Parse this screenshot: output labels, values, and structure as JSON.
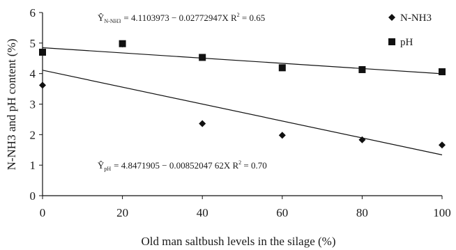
{
  "chart_data": {
    "type": "scatter",
    "xlabel": "Old man saltbush levels in the silage (%)",
    "ylabel": "N-NH3 and pH content (%)",
    "xlim": [
      0,
      100
    ],
    "ylim": [
      0,
      6
    ],
    "x_ticks": [
      "0",
      "20",
      "40",
      "60",
      "80",
      "100"
    ],
    "y_ticks": [
      "0",
      "1",
      "2",
      "3",
      "4",
      "5",
      "6"
    ],
    "grid": false,
    "legend_position": "top-right",
    "series": [
      {
        "name": "N-NH3",
        "marker": "diamond",
        "color": "#111111",
        "x": [
          0,
          20,
          40,
          60,
          80,
          100
        ],
        "y": [
          3.62,
          4.97,
          2.36,
          1.98,
          1.83,
          1.66
        ],
        "trend": {
          "intercept": 4.1103973,
          "slope": -0.02772947
        }
      },
      {
        "name": "pH",
        "marker": "square",
        "color": "#111111",
        "x": [
          0,
          20,
          40,
          60,
          80,
          100
        ],
        "y": [
          4.7,
          4.98,
          4.53,
          4.19,
          4.13,
          4.06
        ],
        "trend": {
          "intercept": 4.8471905,
          "slope": -0.0085204762
        }
      }
    ],
    "annotations": {
      "top": {
        "symbol": "Ŷ",
        "subscript": "N-NH3",
        "equation": "= 4.1103973   − 0.02772947X   R",
        "r2_sup": "2",
        "r2_value": " = 0.65"
      },
      "bottom": {
        "symbol": "Ŷ",
        "subscript": "pH",
        "equation": "= 4.8471905   − 0.00852047 62X   R",
        "r2_sup": "2",
        "r2_value": " = 0.70"
      }
    }
  }
}
